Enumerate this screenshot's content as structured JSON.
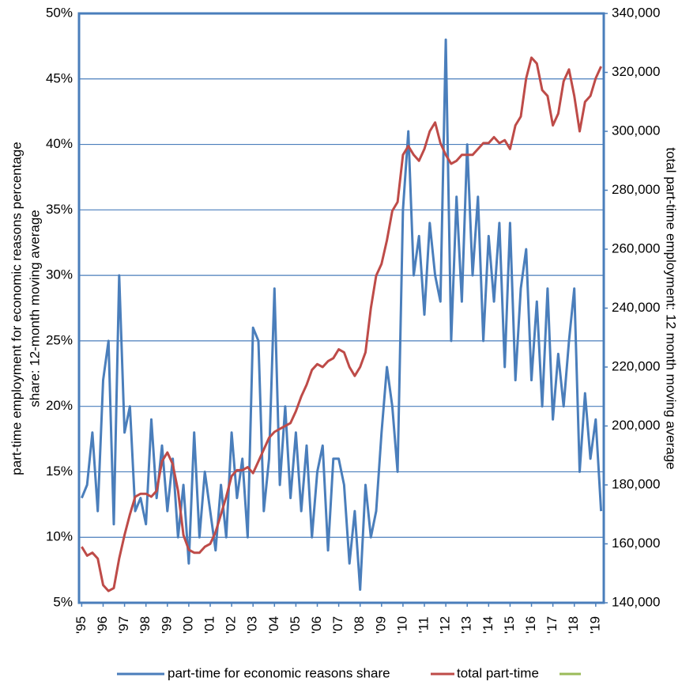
{
  "chart_data": {
    "type": "line",
    "ylabel": [
      "part-time employment for economic reasons percentage",
      "share: 12-month moving average"
    ],
    "y2label": "total part-time employment: 12 month moving average",
    "categories": [
      "'95",
      null,
      null,
      null,
      "'96",
      null,
      null,
      null,
      "'97",
      null,
      null,
      null,
      "'98",
      null,
      null,
      null,
      "'99",
      null,
      null,
      null,
      "'00",
      null,
      null,
      null,
      "'01",
      null,
      null,
      null,
      "'02",
      null,
      null,
      null,
      "'03",
      null,
      null,
      null,
      "'04",
      null,
      null,
      null,
      "'05",
      null,
      null,
      null,
      "'06",
      null,
      null,
      null,
      "'07",
      null,
      null,
      null,
      "'08",
      null,
      null,
      null,
      "'09",
      null,
      null,
      null,
      "'10",
      null,
      null,
      null,
      "'11",
      null,
      null,
      null,
      "'12",
      null,
      null,
      null,
      "'13",
      null,
      null,
      null,
      "'14",
      null,
      null,
      null,
      "'15",
      null,
      null,
      null,
      "'16",
      null,
      null,
      null,
      "'17",
      null,
      null,
      null,
      "'18",
      null,
      null,
      null,
      "'19",
      null
    ],
    "series": [
      {
        "name": "part-time for economic reasons share",
        "color": "#4a7ebb",
        "axis": "y",
        "values": [
          13,
          14,
          18,
          12,
          22,
          25,
          11,
          30,
          18,
          20,
          12,
          13,
          11,
          19,
          13,
          17,
          12,
          16,
          10,
          14,
          8,
          18,
          10,
          15,
          12,
          9,
          14,
          10,
          18,
          13,
          16,
          10,
          26,
          25,
          12,
          16,
          29,
          14,
          20,
          13,
          18,
          12,
          17,
          10,
          15,
          17,
          9,
          16,
          16,
          14,
          8,
          12,
          6,
          14,
          10,
          12,
          18,
          23,
          20,
          15,
          35,
          41,
          30,
          33,
          27,
          34,
          30,
          28,
          48,
          25,
          36,
          28,
          40,
          30,
          36,
          25,
          33,
          28,
          34,
          23,
          34,
          22,
          29,
          32,
          22,
          28,
          20,
          29,
          19,
          24,
          20,
          25,
          29,
          15,
          21,
          16,
          19,
          12
        ]
      },
      {
        "name": "total part-time",
        "color": "#be4b48",
        "axis": "y2",
        "values": [
          159000,
          156000,
          157000,
          155000,
          146000,
          144000,
          145000,
          155000,
          163000,
          170000,
          176000,
          177000,
          177000,
          176000,
          178000,
          188000,
          191000,
          187000,
          178000,
          163000,
          158000,
          157000,
          157000,
          159000,
          160000,
          164000,
          170000,
          176000,
          183000,
          185000,
          185000,
          186000,
          184000,
          188000,
          192000,
          196000,
          198000,
          199000,
          200000,
          201000,
          205000,
          210000,
          214000,
          219000,
          221000,
          220000,
          222000,
          223000,
          226000,
          225000,
          220000,
          217000,
          220000,
          225000,
          240000,
          251000,
          255000,
          263000,
          273000,
          276000,
          292000,
          295000,
          292000,
          290000,
          294000,
          300000,
          303000,
          296000,
          292000,
          289000,
          290000,
          292000,
          292000,
          292000,
          294000,
          296000,
          296000,
          298000,
          296000,
          297000,
          294000,
          302000,
          305000,
          318000,
          325000,
          323000,
          314000,
          312000,
          302000,
          306000,
          317000,
          321000,
          312000,
          300000,
          310000,
          312000,
          318000,
          322000
        ]
      }
    ],
    "ylim": [
      5,
      50
    ],
    "yticks": [
      {
        "value": 5,
        "label": "5%"
      },
      {
        "value": 10,
        "label": "10%"
      },
      {
        "value": 15,
        "label": "15%"
      },
      {
        "value": 20,
        "label": "20%"
      },
      {
        "value": 25,
        "label": "25%"
      },
      {
        "value": 30,
        "label": "30%"
      },
      {
        "value": 35,
        "label": "35%"
      },
      {
        "value": 40,
        "label": "40%"
      },
      {
        "value": 45,
        "label": "45%"
      },
      {
        "value": 50,
        "label": "50%"
      }
    ],
    "y2lim": [
      140000,
      340000
    ],
    "y2ticks": [
      {
        "value": 140000,
        "label": "140,000"
      },
      {
        "value": 160000,
        "label": "160,000"
      },
      {
        "value": 180000,
        "label": "180,000"
      },
      {
        "value": 200000,
        "label": "200,000"
      },
      {
        "value": 220000,
        "label": "220,000"
      },
      {
        "value": 240000,
        "label": "240,000"
      },
      {
        "value": 260000,
        "label": "260,000"
      },
      {
        "value": 280000,
        "label": "280,000"
      },
      {
        "value": 300000,
        "label": "300,000"
      },
      {
        "value": 320000,
        "label": "320,000"
      },
      {
        "value": 340000,
        "label": "340,000"
      }
    ],
    "grid": true
  }
}
